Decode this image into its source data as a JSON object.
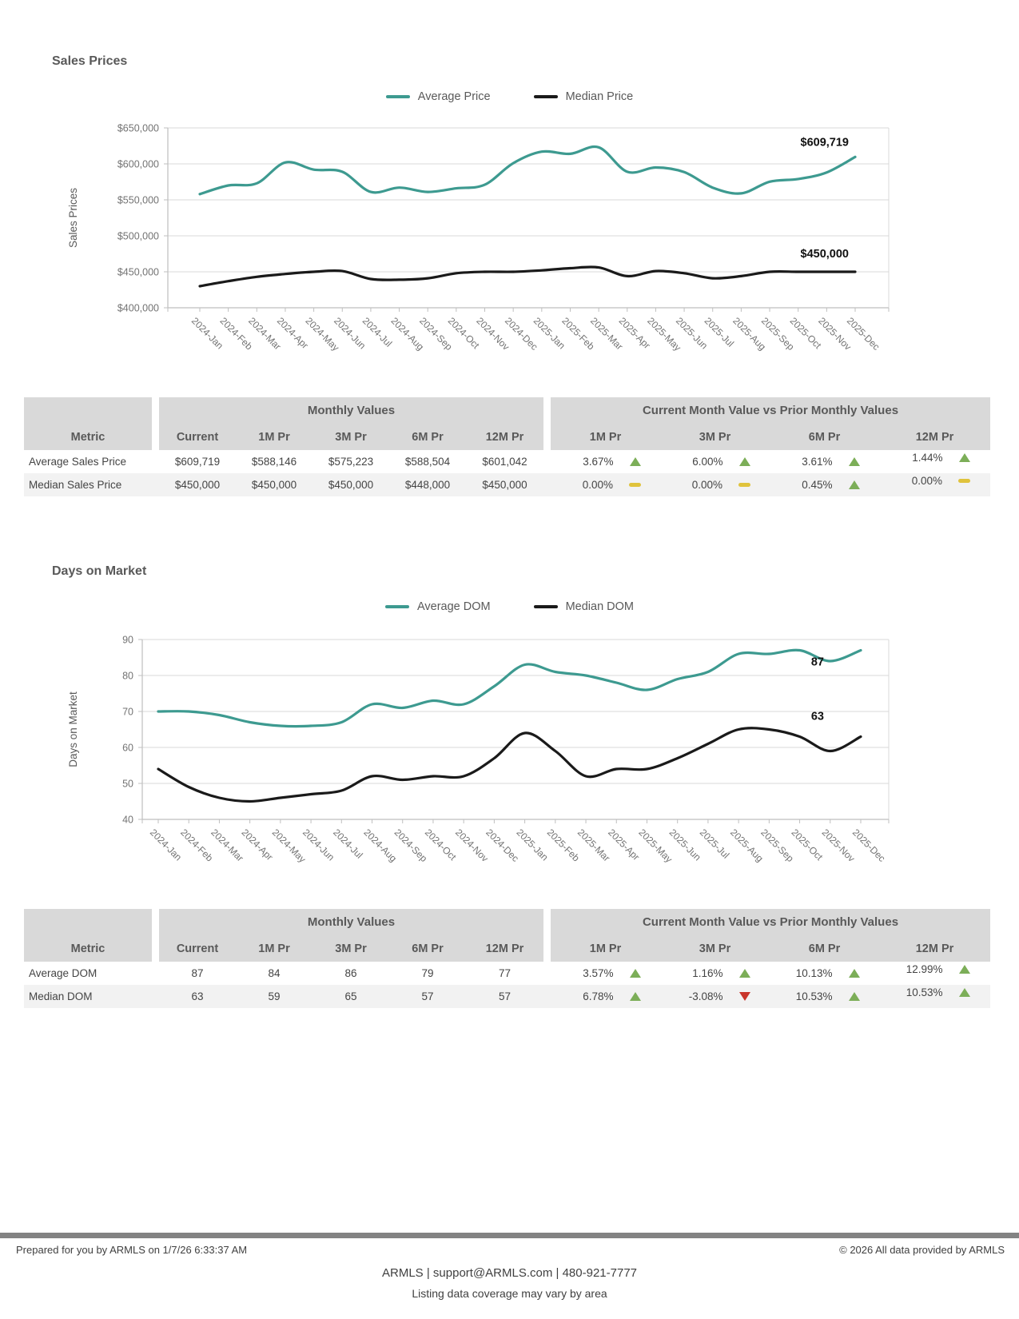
{
  "colors": {
    "accent": "#3d9a90",
    "line_black": "#1a1a1a",
    "up_arrow": "#7cae58",
    "down_arrow": "#c9352b",
    "flat_dash": "#e0c33c",
    "table_band": "#d9d9d9"
  },
  "sections": [
    {
      "title": "Sales Prices",
      "chart_data": {
        "type": "line",
        "x": [
          "2024-Jan",
          "2024-Feb",
          "2024-Mar",
          "2024-Apr",
          "2024-May",
          "2024-Jun",
          "2024-Jul",
          "2024-Aug",
          "2024-Sep",
          "2024-Oct",
          "2024-Nov",
          "2024-Dec",
          "2025-Jan",
          "2025-Feb",
          "2025-Mar",
          "2025-Apr",
          "2025-May",
          "2025-Jun",
          "2025-Jul",
          "2025-Aug",
          "2025-Sep",
          "2025-Oct",
          "2025-Nov",
          "2025-Dec"
        ],
        "ylabel": "Sales Prices",
        "ylim": [
          400000,
          650000
        ],
        "ytick_step": 50000,
        "currency": true,
        "grid": true,
        "legend_position": "top",
        "series": [
          {
            "name": "Average Price",
            "color": "#3d9a90",
            "values": [
              558000,
              570000,
              573000,
              602000,
              592000,
              589000,
              561000,
              567000,
              561000,
              566000,
              571000,
              601042,
              617000,
              614000,
              623000,
              589000,
              595000,
              588504,
              567000,
              559000,
              575223,
              579000,
              588146,
              609719
            ]
          },
          {
            "name": "Median Price",
            "color": "#1a1a1a",
            "values": [
              430000,
              437000,
              443000,
              447000,
              450000,
              451000,
              440000,
              439000,
              441000,
              448000,
              450000,
              450000,
              452000,
              455000,
              456000,
              444000,
              451000,
              448000,
              441000,
              444000,
              450000,
              450000,
              450000,
              450000
            ]
          }
        ],
        "end_labels": [
          "$609,719",
          "$450,000"
        ]
      },
      "table": {
        "metric_header": "Metric",
        "monthly_group_header": "Monthly Values",
        "comparison_group_header": "Current Month Value vs Prior Monthly Values",
        "value_columns": [
          "Current",
          "1M Pr",
          "3M Pr",
          "6M Pr",
          "12M Pr"
        ],
        "comparison_columns": [
          "1M Pr",
          "3M Pr",
          "6M Pr",
          "12M Pr"
        ],
        "rows": [
          {
            "metric": "Average Sales Price",
            "values": [
              "$609,719",
              "$588,146",
              "$575,223",
              "$588,504",
              "$601,042"
            ],
            "changes": [
              {
                "value": "3.67%",
                "dir": "up"
              },
              {
                "value": "6.00%",
                "dir": "up"
              },
              {
                "value": "3.61%",
                "dir": "up"
              },
              {
                "value": "1.44%",
                "dir": "up"
              }
            ]
          },
          {
            "metric": "Median Sales Price",
            "values": [
              "$450,000",
              "$450,000",
              "$450,000",
              "$448,000",
              "$450,000"
            ],
            "changes": [
              {
                "value": "0.00%",
                "dir": "flat"
              },
              {
                "value": "0.00%",
                "dir": "flat"
              },
              {
                "value": "0.45%",
                "dir": "up"
              },
              {
                "value": "0.00%",
                "dir": "flat"
              }
            ]
          }
        ]
      }
    },
    {
      "title": "Days on Market",
      "chart_data": {
        "type": "line",
        "x": [
          "2024-Jan",
          "2024-Feb",
          "2024-Mar",
          "2024-Apr",
          "2024-May",
          "2024-Jun",
          "2024-Jul",
          "2024-Aug",
          "2024-Sep",
          "2024-Oct",
          "2024-Nov",
          "2024-Dec",
          "2025-Jan",
          "2025-Feb",
          "2025-Mar",
          "2025-Apr",
          "2025-May",
          "2025-Jun",
          "2025-Jul",
          "2025-Aug",
          "2025-Sep",
          "2025-Oct",
          "2025-Nov",
          "2025-Dec"
        ],
        "ylabel": "Days on Market",
        "ylim": [
          40,
          90
        ],
        "ytick_step": 10,
        "currency": false,
        "grid": true,
        "legend_position": "top",
        "series": [
          {
            "name": "Average DOM",
            "color": "#3d9a90",
            "values": [
              70,
              70,
              69,
              67,
              66,
              66,
              67,
              72,
              71,
              73,
              72,
              77,
              83,
              81,
              80,
              78,
              76,
              79,
              81,
              86,
              86,
              87,
              84,
              87
            ]
          },
          {
            "name": "Median DOM",
            "color": "#1a1a1a",
            "values": [
              54,
              49,
              46,
              45,
              46,
              47,
              48,
              52,
              51,
              52,
              52,
              57,
              64,
              59,
              52,
              54,
              54,
              57,
              61,
              65,
              65,
              63,
              59,
              63
            ]
          }
        ],
        "end_labels": [
          "87",
          "63"
        ]
      },
      "table": {
        "metric_header": "Metric",
        "monthly_group_header": "Monthly Values",
        "comparison_group_header": "Current Month Value vs Prior Monthly Values",
        "value_columns": [
          "Current",
          "1M Pr",
          "3M Pr",
          "6M Pr",
          "12M Pr"
        ],
        "comparison_columns": [
          "1M Pr",
          "3M Pr",
          "6M Pr",
          "12M Pr"
        ],
        "rows": [
          {
            "metric": "Average DOM",
            "values": [
              "87",
              "84",
              "86",
              "79",
              "77"
            ],
            "changes": [
              {
                "value": "3.57%",
                "dir": "up"
              },
              {
                "value": "1.16%",
                "dir": "up"
              },
              {
                "value": "10.13%",
                "dir": "up"
              },
              {
                "value": "12.99%",
                "dir": "up"
              }
            ]
          },
          {
            "metric": "Median DOM",
            "values": [
              "63",
              "59",
              "65",
              "57",
              "57"
            ],
            "changes": [
              {
                "value": "6.78%",
                "dir": "up"
              },
              {
                "value": "-3.08%",
                "dir": "down"
              },
              {
                "value": "10.53%",
                "dir": "up"
              },
              {
                "value": "10.53%",
                "dir": "up"
              }
            ]
          }
        ]
      }
    }
  ],
  "footer": {
    "prepared": "Prepared for you by ARMLS on 1/7/26 6:33:37 AM",
    "copyright": "© 2026 All data provided by ARMLS",
    "contact": "ARMLS | support@ARMLS.com | 480-921-7777",
    "coverage": "Listing data coverage may vary by area"
  }
}
